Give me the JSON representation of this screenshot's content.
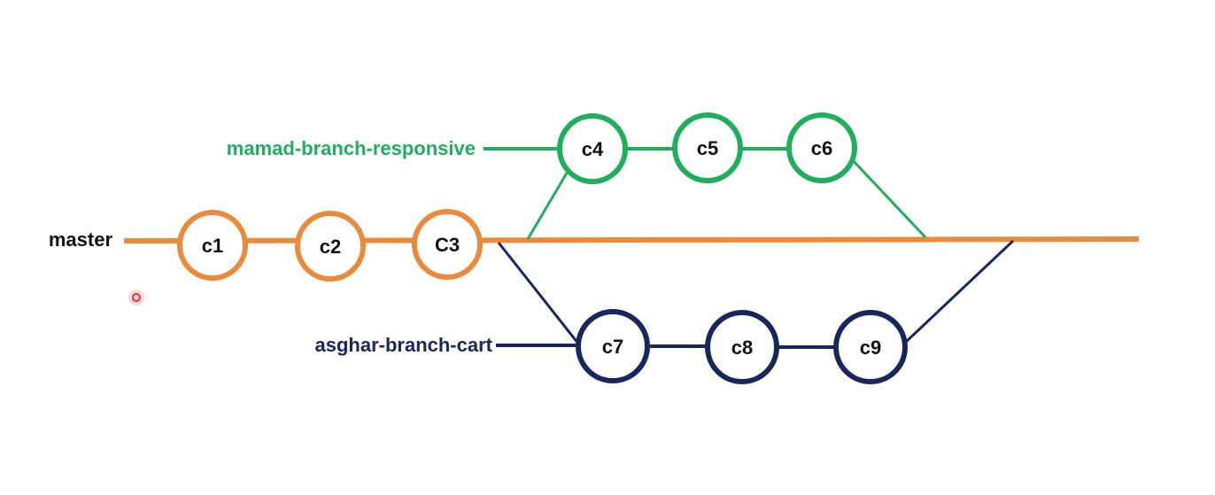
{
  "colors": {
    "master": "#ea8a3c",
    "responsive": "#1fae5b",
    "cart": "#17275e",
    "label_text": "#111111",
    "cursor": "#e0303a"
  },
  "branches": {
    "master": {
      "label": "master",
      "commits": [
        "c1",
        "c2",
        "C3"
      ]
    },
    "responsive": {
      "label": "mamad-branch-responsive",
      "commits": [
        "c4",
        "c5",
        "c6"
      ]
    },
    "cart": {
      "label": "asghar-branch-cart",
      "commits": [
        "c7",
        "c8",
        "c9"
      ]
    }
  }
}
